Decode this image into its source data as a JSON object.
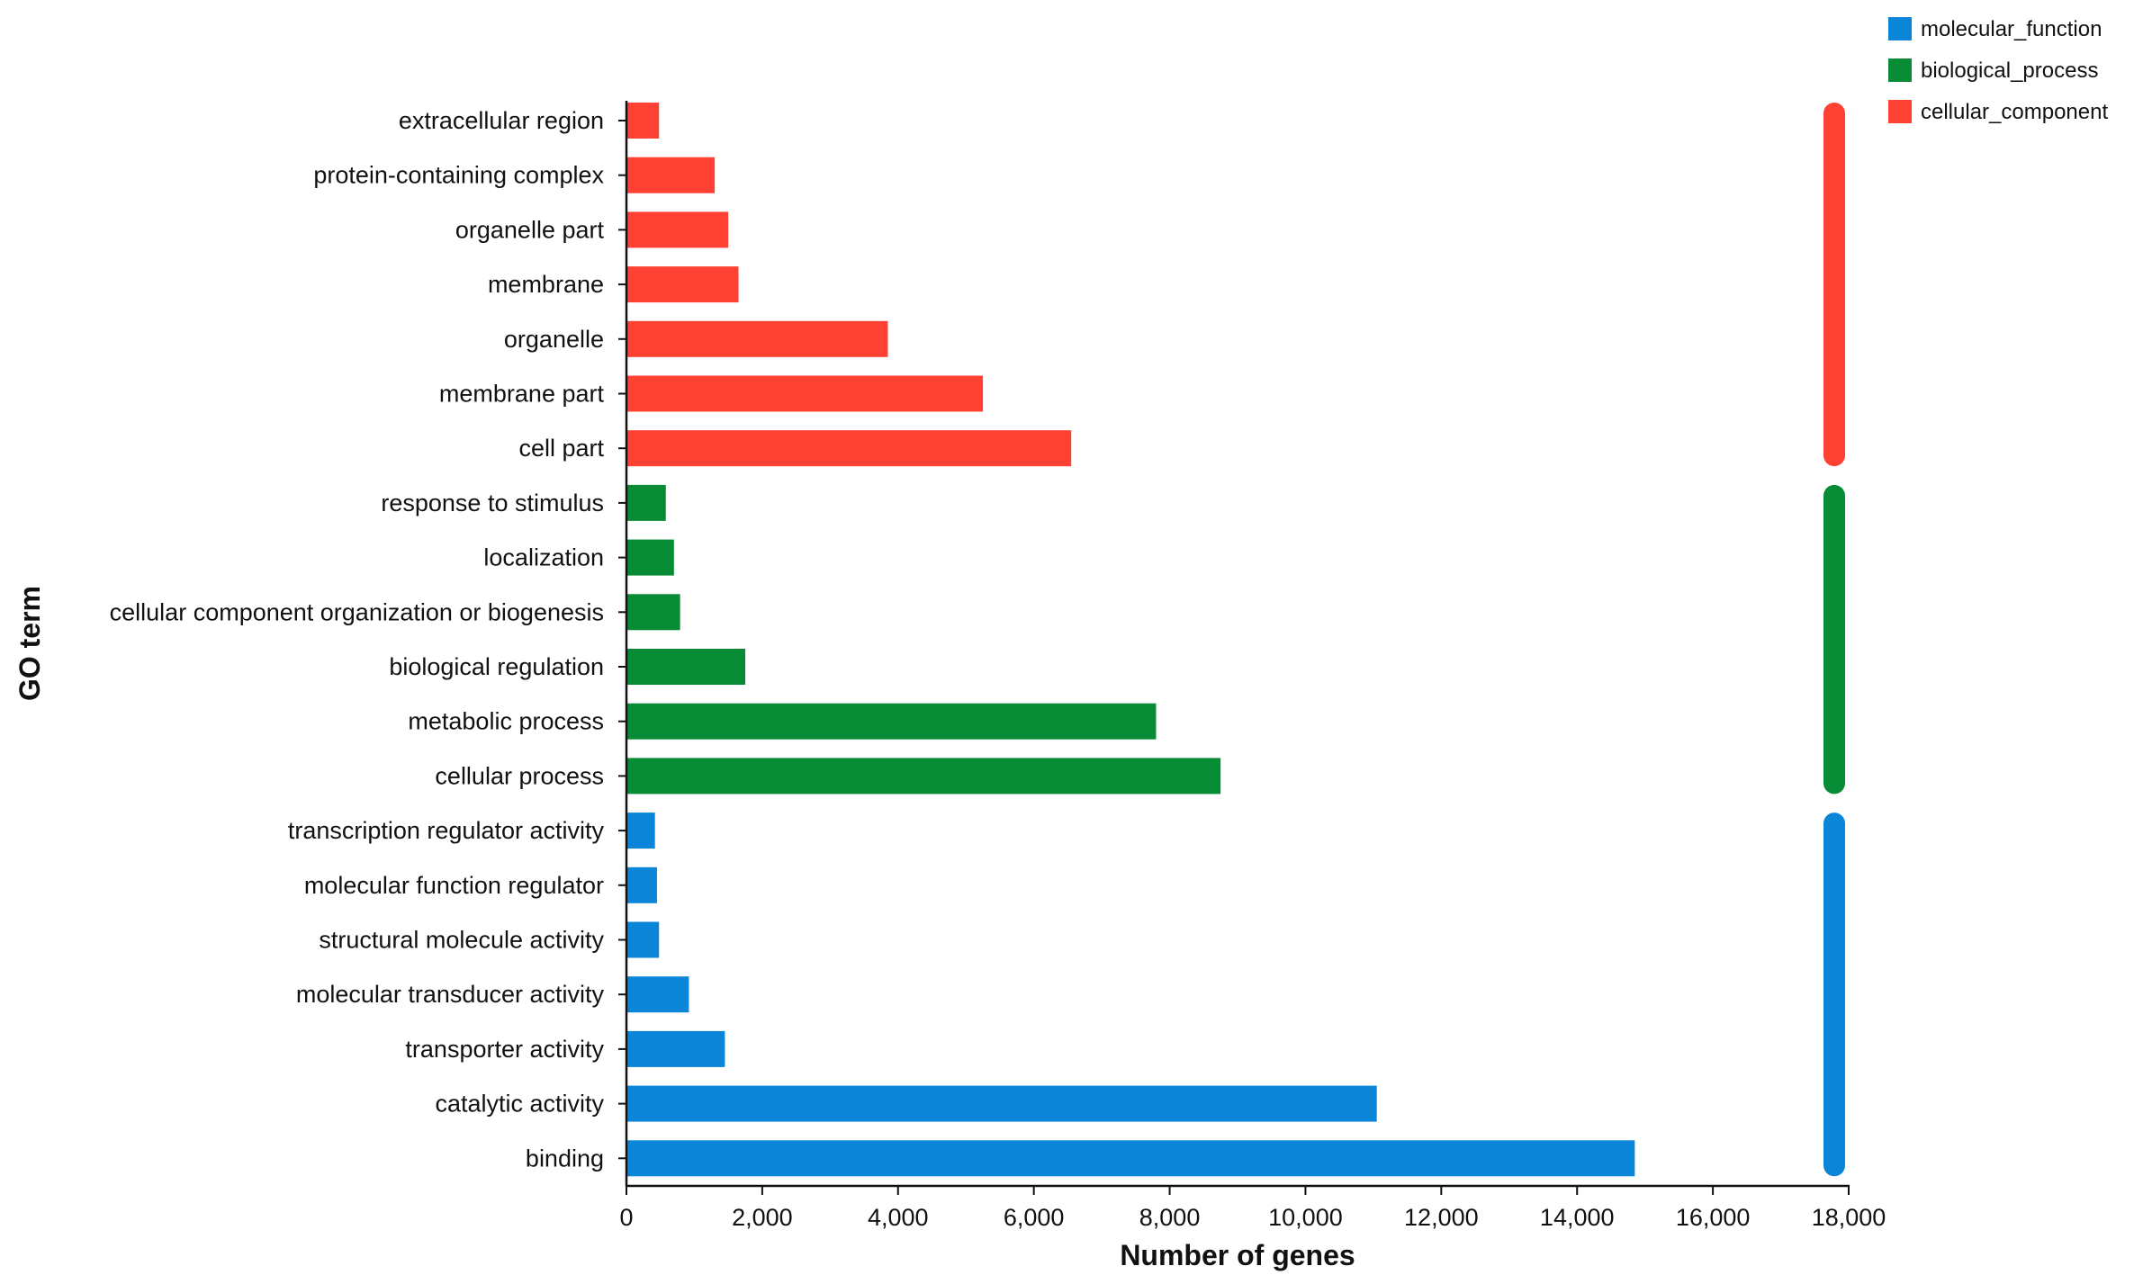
{
  "chart_data": {
    "type": "bar",
    "orientation": "horizontal",
    "xlabel": "Number of genes",
    "ylabel": "GO term",
    "xlim": [
      0,
      18000
    ],
    "xticks": [
      0,
      2000,
      4000,
      6000,
      8000,
      10000,
      12000,
      14000,
      16000,
      18000
    ],
    "xtick_labels": [
      "0",
      "2,000",
      "4,000",
      "6,000",
      "8,000",
      "10,000",
      "12,000",
      "14,000",
      "16,000",
      "18,000"
    ],
    "legend_position": "top-right",
    "series": [
      {
        "name": "molecular_function",
        "color": "#0a85d8",
        "categories": [
          "binding",
          "catalytic activity",
          "transporter activity",
          "molecular transducer activity",
          "structural molecule activity",
          "molecular function regulator",
          "transcription regulator activity"
        ],
        "values": [
          14850,
          11050,
          1450,
          920,
          480,
          450,
          420
        ]
      },
      {
        "name": "biological_process",
        "color": "#078b35",
        "categories": [
          "cellular process",
          "metabolic process",
          "biological regulation",
          "cellular component organization or biogenesis",
          "localization",
          "response to stimulus"
        ],
        "values": [
          8750,
          7800,
          1750,
          790,
          700,
          580
        ]
      },
      {
        "name": "cellular_component",
        "color": "#ff4133",
        "categories": [
          "cell part",
          "membrane part",
          "organelle",
          "membrane",
          "organelle part",
          "protein-containing complex",
          "extracellular region"
        ],
        "values": [
          6550,
          5250,
          3850,
          1650,
          1500,
          1300,
          480
        ]
      }
    ]
  }
}
